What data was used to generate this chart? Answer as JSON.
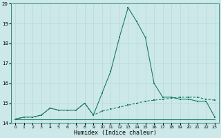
{
  "xlabel": "Humidex (Indice chaleur)",
  "x_values": [
    0,
    1,
    2,
    3,
    4,
    5,
    6,
    7,
    8,
    9,
    10,
    11,
    12,
    13,
    14,
    15,
    16,
    17,
    18,
    19,
    20,
    21,
    22,
    23
  ],
  "line1_y": [
    14.2,
    14.2,
    14.2,
    14.2,
    14.2,
    14.2,
    14.2,
    14.2,
    14.2,
    14.2,
    14.2,
    14.2,
    14.2,
    14.2,
    14.2,
    14.2,
    14.2,
    14.2,
    14.2,
    14.2,
    14.2,
    14.2,
    14.2,
    14.2
  ],
  "line2_y": [
    14.2,
    14.3,
    14.3,
    14.4,
    14.75,
    14.65,
    14.65,
    14.65,
    15.0,
    14.4,
    15.5,
    16.6,
    18.3,
    19.8,
    19.1,
    18.3,
    16.0,
    15.3,
    15.3,
    15.2,
    15.2,
    15.1,
    15.1,
    14.3
  ],
  "line3_y": [
    14.2,
    14.3,
    14.3,
    14.4,
    14.75,
    14.65,
    14.65,
    14.65,
    15.0,
    14.4,
    14.6,
    14.7,
    14.8,
    14.9,
    15.0,
    15.1,
    15.15,
    15.2,
    15.25,
    15.3,
    15.3,
    15.3,
    15.2,
    15.15
  ],
  "bg_color": "#cce8e8",
  "grid_color": "#b8d8d8",
  "line_color": "#1a7a6a",
  "ylim": [
    14.0,
    20.0
  ],
  "xlim": [
    -0.5,
    23.5
  ],
  "yticks": [
    14,
    15,
    16,
    17,
    18,
    19,
    20
  ],
  "xtick_labels": [
    "0",
    "1",
    "2",
    "3",
    "4",
    "5",
    "6",
    "7",
    "8",
    "9",
    "10",
    "11",
    "12",
    "13",
    "14",
    "15",
    "16",
    "17",
    "18",
    "19",
    "20",
    "21",
    "22",
    "23"
  ],
  "marker_size": 1.8,
  "line_width": 0.8
}
